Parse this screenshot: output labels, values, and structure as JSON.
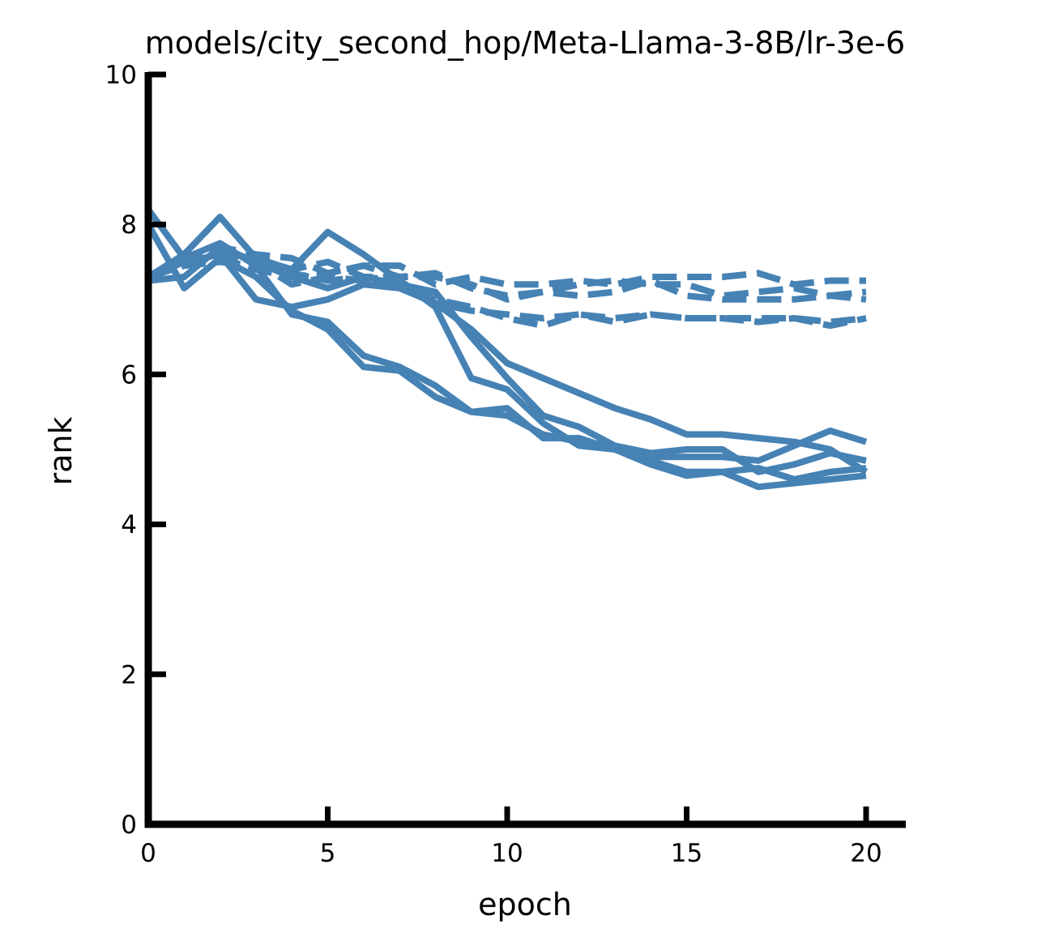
{
  "chart_data": {
    "type": "line",
    "title": "models/city_second_hop/Meta-Llama-3-8B/lr-3e-6",
    "xlabel": "epoch",
    "ylabel": "rank",
    "xlim": [
      0,
      21.1
    ],
    "ylim": [
      0,
      10
    ],
    "xticks": [
      0,
      5,
      10,
      15,
      20
    ],
    "yticks": [
      0,
      2,
      4,
      6,
      8,
      10
    ],
    "grid": false,
    "legend": "none",
    "color": "#4682b4",
    "x": [
      0,
      1,
      2,
      3,
      4,
      5,
      6,
      7,
      8,
      9,
      10,
      11,
      12,
      13,
      14,
      15,
      16,
      17,
      18,
      19,
      20
    ],
    "series": [
      {
        "style": "solid",
        "values": [
          8.2,
          7.55,
          7.75,
          7.45,
          6.8,
          6.7,
          6.25,
          6.1,
          5.85,
          5.5,
          5.45,
          5.2,
          5.1,
          5.05,
          4.95,
          5.0,
          5.0,
          4.7,
          4.8,
          4.95,
          4.85
        ]
      },
      {
        "style": "solid",
        "values": [
          7.3,
          7.6,
          8.1,
          7.55,
          7.4,
          7.9,
          7.6,
          7.25,
          6.9,
          5.95,
          5.8,
          5.35,
          5.05,
          5.0,
          4.9,
          4.9,
          4.9,
          4.85,
          5.05,
          5.25,
          5.1
        ]
      },
      {
        "style": "solid",
        "values": [
          7.3,
          7.5,
          7.6,
          7.0,
          6.9,
          7.0,
          7.2,
          7.15,
          6.95,
          6.6,
          6.15,
          5.95,
          5.75,
          5.55,
          5.4,
          5.2,
          5.2,
          5.15,
          5.1,
          5.0,
          4.7
        ]
      },
      {
        "style": "solid",
        "values": [
          8.0,
          7.15,
          7.55,
          7.3,
          6.85,
          6.6,
          6.1,
          6.05,
          5.7,
          5.5,
          5.55,
          5.15,
          5.15,
          5.0,
          4.8,
          4.65,
          4.7,
          4.5,
          4.55,
          4.6,
          4.65
        ]
      },
      {
        "style": "solid",
        "values": [
          7.25,
          7.3,
          7.7,
          7.5,
          7.3,
          7.15,
          7.3,
          7.2,
          7.1,
          6.5,
          5.95,
          5.45,
          5.3,
          5.05,
          4.85,
          4.7,
          4.7,
          4.75,
          4.6,
          4.7,
          4.75
        ]
      },
      {
        "style": "dashed",
        "values": [
          7.3,
          7.55,
          7.7,
          7.6,
          7.55,
          7.35,
          7.45,
          7.45,
          7.2,
          7.3,
          7.2,
          7.2,
          7.25,
          7.2,
          7.3,
          7.3,
          7.3,
          7.35,
          7.2,
          7.25,
          7.25
        ]
      },
      {
        "style": "dashed",
        "values": [
          7.3,
          7.45,
          7.6,
          7.55,
          7.4,
          7.5,
          7.3,
          7.3,
          7.35,
          7.15,
          7.05,
          7.1,
          7.2,
          7.25,
          7.2,
          7.2,
          7.05,
          7.1,
          7.15,
          7.05,
          7.1
        ]
      },
      {
        "style": "dashed",
        "values": [
          7.3,
          7.5,
          7.55,
          7.4,
          7.3,
          7.35,
          7.45,
          7.3,
          7.3,
          7.2,
          7.0,
          7.1,
          7.05,
          7.1,
          7.25,
          7.05,
          7.0,
          7.0,
          7.0,
          7.05,
          7.0
        ]
      },
      {
        "style": "dashed",
        "values": [
          7.3,
          7.45,
          7.5,
          7.45,
          7.35,
          7.25,
          7.3,
          7.25,
          6.95,
          6.85,
          6.8,
          6.75,
          6.8,
          6.7,
          6.8,
          6.75,
          6.75,
          6.75,
          6.75,
          6.7,
          6.75
        ]
      },
      {
        "style": "dashed",
        "values": [
          7.3,
          7.5,
          7.6,
          7.5,
          7.2,
          7.3,
          7.25,
          7.2,
          7.0,
          6.9,
          6.75,
          6.65,
          6.8,
          6.75,
          6.8,
          6.75,
          6.75,
          6.7,
          6.75,
          6.65,
          6.75
        ]
      }
    ]
  }
}
